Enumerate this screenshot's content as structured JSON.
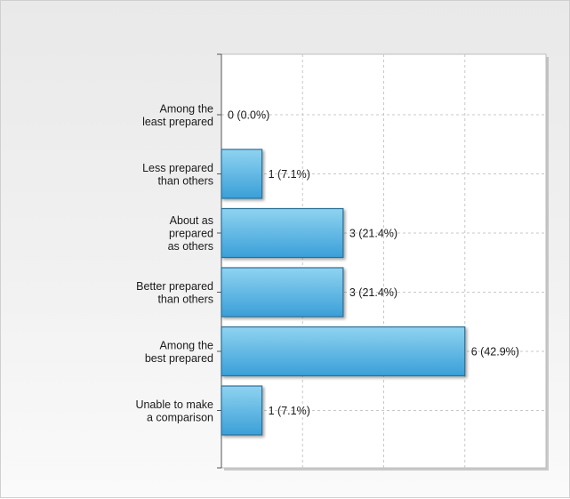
{
  "colors": {
    "bar_fill_top": "#8fd3f0",
    "bar_fill_bottom": "#3a9fd8",
    "bar_stroke": "#2a6f98",
    "grid": "#c8c8c8",
    "plot_bg": "#ffffff"
  },
  "chart_data": {
    "type": "bar",
    "orientation": "horizontal",
    "categories": [
      [
        "Among the",
        "least prepared"
      ],
      [
        "Less prepared",
        "than others"
      ],
      [
        "About as",
        "prepared",
        "as others"
      ],
      [
        "Better prepared",
        "than others"
      ],
      [
        "Among the",
        "best prepared"
      ],
      [
        "Unable to make",
        "a comparison"
      ]
    ],
    "values": [
      0,
      1,
      3,
      3,
      6,
      1
    ],
    "value_labels": [
      "0 (0.0%)",
      "1 (7.1%)",
      "3 (21.4%)",
      "3 (21.4%)",
      "6 (42.9%)",
      "1 (7.1%)"
    ],
    "xlim": [
      0,
      8
    ],
    "grid": true,
    "legend": "none"
  }
}
